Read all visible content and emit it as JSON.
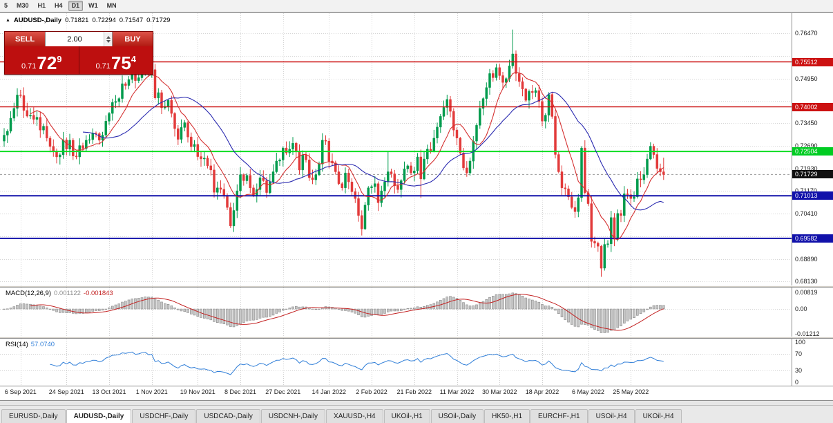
{
  "toolbar": {
    "timeframes": [
      "5",
      "M30",
      "H1",
      "H4",
      "D1",
      "W1",
      "MN"
    ],
    "active": "D1"
  },
  "chart_header": {
    "symbol_label": "AUDUSD-,Daily",
    "open": "0.71821",
    "high": "0.72294",
    "low": "0.71547",
    "close": "0.71729"
  },
  "trade_panel": {
    "sell_label": "SELL",
    "buy_label": "BUY",
    "volume": "2.00",
    "sell_price": {
      "prefix": "0.71",
      "big": "72",
      "pip": "9"
    },
    "buy_price": {
      "prefix": "0.71",
      "big": "75",
      "pip": "4"
    }
  },
  "price_scale": {
    "labels": [
      [
        "0.76470",
        0.7647
      ],
      [
        "0.74950",
        0.7495
      ],
      [
        "0.73450",
        0.7345
      ],
      [
        "0.72690",
        0.7269
      ],
      [
        "0.71930",
        0.7193
      ],
      [
        "0.71170",
        0.7117
      ],
      [
        "0.70410",
        0.7041
      ],
      [
        "0.68890",
        0.6889
      ],
      [
        "0.68130",
        0.6813
      ]
    ],
    "grid_prices": [
      0.7647,
      0.7571,
      0.7495,
      0.7419,
      0.7345,
      0.7269,
      0.7193,
      0.7117,
      0.7041,
      0.6965,
      0.6889,
      0.6813
    ],
    "badges": [
      {
        "text": "0.75512",
        "price": 0.75512,
        "bg": "#cc1111"
      },
      {
        "text": "0.74002",
        "price": 0.74002,
        "bg": "#cc1111"
      },
      {
        "text": "0.72504",
        "price": 0.72504,
        "bg": "#00cc22"
      },
      {
        "text": "0.71729",
        "price": 0.71729,
        "bg": "#111111"
      },
      {
        "text": "0.71013",
        "price": 0.71013,
        "bg": "#1111aa"
      },
      {
        "text": "0.69582",
        "price": 0.69582,
        "bg": "#1111aa"
      }
    ]
  },
  "indicators": {
    "macd": {
      "name": "MACD(12,26,9)",
      "value": "0.001122",
      "signal_value": "-0.001843",
      "scale": [
        [
          "0.00819",
          0.00819
        ],
        [
          "0.00",
          0
        ],
        [
          "-0.01212",
          -0.01212
        ]
      ]
    },
    "rsi": {
      "name": "RSI(14)",
      "value": "57.0740",
      "scale": [
        [
          "100",
          100
        ],
        [
          "70",
          70
        ],
        [
          "30",
          30
        ],
        [
          "0",
          0
        ]
      ]
    }
  },
  "date_axis": [
    [
      "6 Sep 2021",
      5
    ],
    [
      "24 Sep 2021",
      19
    ],
    [
      "13 Oct 2021",
      32
    ],
    [
      "1 Nov 2021",
      45
    ],
    [
      "19 Nov 2021",
      59
    ],
    [
      "8 Dec 2021",
      72
    ],
    [
      "27 Dec 2021",
      85
    ],
    [
      "14 Jan 2022",
      99
    ],
    [
      "2 Feb 2022",
      112
    ],
    [
      "21 Feb 2022",
      125
    ],
    [
      "11 Mar 2022",
      138
    ],
    [
      "30 Mar 2022",
      151
    ],
    [
      "18 Apr 2022",
      164
    ],
    [
      "6 May 2022",
      178
    ],
    [
      "25 May 2022",
      191
    ]
  ],
  "tab_bar": {
    "tabs": [
      "EURUSD-,Daily",
      "AUDUSD-,Daily",
      "USDCHF-,Daily",
      "USDCAD-,Daily",
      "USDCNH-,Daily",
      "XAUUSD-,H4",
      "UKOil-,H1",
      "USOil-,Daily",
      "HK50-,H1",
      "EURCHF-,H1",
      "USOil-,H4",
      "UKOil-,H4"
    ],
    "active": "AUDUSD-,Daily"
  },
  "chart_data": {
    "type": "candlestick",
    "title": "AUDUSD-,Daily",
    "y_range": {
      "top": 0.7715,
      "bottom": 0.68
    },
    "up_color": "#009b4d",
    "down_color": "#e23a3a",
    "ma_lines": [
      {
        "period": 9,
        "color": "#d43030"
      },
      {
        "period": 25,
        "color": "#2a2ab0"
      }
    ],
    "h_lines": [
      {
        "price": 0.75512,
        "color": "#cc1111",
        "w": 1.4
      },
      {
        "price": 0.74002,
        "color": "#cc1111",
        "w": 1.4
      },
      {
        "price": 0.72504,
        "color": "#00dd22",
        "w": 2
      },
      {
        "price": 0.71013,
        "color": "#1111aa",
        "w": 2
      },
      {
        "price": 0.69582,
        "color": "#1111aa",
        "w": 2
      }
    ],
    "bid_line": {
      "price": 0.71729,
      "color": "#9a9a9a"
    },
    "macd": {
      "fast": 12,
      "slow": 26,
      "signal": 9,
      "hist_color": "#c6c6c6",
      "hist_edge": "#8a8a8a",
      "signal_color": "#c32222",
      "range": {
        "max": 0.0105,
        "min": -0.0135
      }
    },
    "rsi": {
      "period": 14,
      "color": "#2f7ed8",
      "levels": [
        70,
        30
      ],
      "range": {
        "max": 108,
        "min": -8
      }
    },
    "closes": [
      0.7305,
      0.7318,
      0.7362,
      0.7395,
      0.744,
      0.7438,
      0.7388,
      0.7369,
      0.7372,
      0.7358,
      0.7365,
      0.7322,
      0.7335,
      0.7295,
      0.7267,
      0.7252,
      0.7232,
      0.7239,
      0.7289,
      0.7258,
      0.7288,
      0.7235,
      0.7232,
      0.727,
      0.726,
      0.7288,
      0.729,
      0.7312,
      0.731,
      0.7288,
      0.7305,
      0.7352,
      0.7378,
      0.7415,
      0.7418,
      0.7428,
      0.7478,
      0.7472,
      0.7492,
      0.7512,
      0.7488,
      0.7498,
      0.753,
      0.7545,
      0.7518,
      0.7525,
      0.743,
      0.7448,
      0.7397,
      0.7402,
      0.7422,
      0.7378,
      0.7327,
      0.7291,
      0.7331,
      0.7347,
      0.7299,
      0.7266,
      0.7274,
      0.7233,
      0.7225,
      0.7228,
      0.7202,
      0.7188,
      0.7113,
      0.7128,
      0.7123,
      0.7102,
      0.7062,
      0.7,
      0.7052,
      0.7118,
      0.7172,
      0.7152,
      0.717,
      0.7128,
      0.7102,
      0.7122,
      0.7162,
      0.7152,
      0.7112,
      0.7148,
      0.7182,
      0.7218,
      0.7222,
      0.7262,
      0.7245,
      0.7258,
      0.7278,
      0.7252,
      0.7188,
      0.7238,
      0.7222,
      0.7162,
      0.7155,
      0.7172,
      0.7208,
      0.7288,
      0.7285,
      0.7218,
      0.7212,
      0.7182,
      0.7142,
      0.7128,
      0.7178,
      0.7148,
      0.7115,
      0.7092,
      0.7035,
      0.699,
      0.707,
      0.7128,
      0.7132,
      0.7142,
      0.7078,
      0.7118,
      0.7148,
      0.7182,
      0.7175,
      0.7135,
      0.7122,
      0.7152,
      0.7192,
      0.7202,
      0.7178,
      0.7185,
      0.7232,
      0.7158,
      0.7225,
      0.7258,
      0.7252,
      0.7295,
      0.7332,
      0.7368,
      0.7398,
      0.7425,
      0.7385,
      0.7322,
      0.7295,
      0.7245,
      0.7195,
      0.7178,
      0.7218,
      0.7285,
      0.7338,
      0.7395,
      0.7428,
      0.7465,
      0.7512,
      0.7498,
      0.7532,
      0.7505,
      0.7482,
      0.7495,
      0.7538,
      0.7578,
      0.7512,
      0.7485,
      0.746,
      0.7422,
      0.7452,
      0.7448,
      0.7455,
      0.7418,
      0.7352,
      0.7372,
      0.7442,
      0.7368,
      0.724,
      0.7182,
      0.7128,
      0.7125,
      0.7098,
      0.7062,
      0.7048,
      0.7095,
      0.7262,
      0.7112,
      0.7075,
      0.6948,
      0.6942,
      0.6932,
      0.6858,
      0.6938,
      0.694,
      0.7028,
      0.6955,
      0.7042,
      0.7035,
      0.7108,
      0.7105,
      0.7092,
      0.7098,
      0.7158,
      0.7155,
      0.7172,
      0.7225,
      0.7268,
      0.724,
      0.7193,
      0.7182,
      0.71729
    ],
    "wick_overrides": {
      "43": {
        "h": 0.7555
      },
      "69": {
        "l": 0.6993
      },
      "109": {
        "l": 0.6968
      },
      "117": {
        "h": 0.7249
      },
      "127": {
        "l": 0.7094
      },
      "135": {
        "h": 0.7441
      },
      "141": {
        "l": 0.7165
      },
      "155": {
        "h": 0.766
      },
      "182": {
        "l": 0.6829
      }
    },
    "last_candle": {
      "o": 0.71821,
      "h": 0.72294,
      "l": 0.71547,
      "c": 0.71729
    }
  }
}
